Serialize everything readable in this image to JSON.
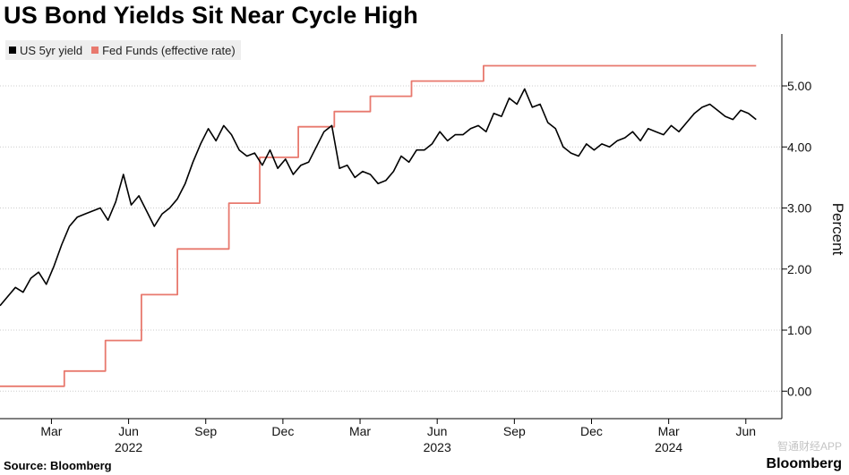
{
  "title": "US Bond Yields Sit Near Cycle High",
  "source": "Source: Bloomberg",
  "brand": "Bloomberg",
  "watermark": "智通财经APP",
  "colors": {
    "yield": "#000000",
    "fed": "#e8796e",
    "grid": "#cccccc"
  },
  "chart_data": {
    "type": "line",
    "title": "US Bond Yields Sit Near Cycle High",
    "xlabel": "",
    "ylabel": "Percent",
    "ylim": [
      -0.45,
      5.85
    ],
    "yticks": [
      0,
      1,
      2,
      3,
      4,
      5
    ],
    "ytick_labels": [
      "0.00",
      "1.00",
      "2.00",
      "3.00",
      "4.00",
      "5.00"
    ],
    "xlim": [
      0,
      30.4
    ],
    "xticks": [
      {
        "x": 2.0,
        "label": "Mar"
      },
      {
        "x": 5.0,
        "label": "Jun"
      },
      {
        "x": 8.0,
        "label": "Sep"
      },
      {
        "x": 11.0,
        "label": "Dec"
      },
      {
        "x": 14.0,
        "label": "Mar"
      },
      {
        "x": 17.0,
        "label": "Jun"
      },
      {
        "x": 20.0,
        "label": "Sep"
      },
      {
        "x": 23.0,
        "label": "Dec"
      },
      {
        "x": 26.0,
        "label": "Mar"
      },
      {
        "x": 29.0,
        "label": "Jun"
      }
    ],
    "year_labels": [
      {
        "x": 5.0,
        "label": "2022"
      },
      {
        "x": 17.0,
        "label": "2023"
      },
      {
        "x": 26.0,
        "label": "2024"
      }
    ],
    "x_unit": "months since 2022-01-01",
    "legend": "top-left",
    "grid": true,
    "series": [
      {
        "name": "US 5yr yield",
        "color": "#000000",
        "x": [
          0.0,
          0.3,
          0.6,
          0.9,
          1.2,
          1.5,
          1.8,
          2.1,
          2.4,
          2.7,
          3.0,
          3.3,
          3.6,
          3.9,
          4.2,
          4.5,
          4.8,
          5.1,
          5.4,
          5.7,
          6.0,
          6.3,
          6.6,
          6.9,
          7.2,
          7.5,
          7.8,
          8.1,
          8.4,
          8.7,
          9.0,
          9.3,
          9.6,
          9.9,
          10.2,
          10.5,
          10.8,
          11.1,
          11.4,
          11.7,
          12.0,
          12.3,
          12.6,
          12.9,
          13.2,
          13.5,
          13.8,
          14.1,
          14.4,
          14.7,
          15.0,
          15.3,
          15.6,
          15.9,
          16.2,
          16.5,
          16.8,
          17.1,
          17.4,
          17.7,
          18.0,
          18.3,
          18.6,
          18.9,
          19.2,
          19.5,
          19.8,
          20.1,
          20.4,
          20.7,
          21.0,
          21.3,
          21.6,
          21.9,
          22.2,
          22.5,
          22.8,
          23.1,
          23.4,
          23.7,
          24.0,
          24.3,
          24.6,
          24.9,
          25.2,
          25.5,
          25.8,
          26.1,
          26.4,
          26.7,
          27.0,
          27.3,
          27.6,
          27.9,
          28.2,
          28.5,
          28.8,
          29.1,
          29.4
        ],
        "values": [
          1.4,
          1.55,
          1.7,
          1.62,
          1.85,
          1.95,
          1.75,
          2.05,
          2.4,
          2.7,
          2.85,
          2.9,
          2.95,
          3.0,
          2.8,
          3.1,
          3.55,
          3.05,
          3.2,
          2.95,
          2.7,
          2.9,
          3.0,
          3.15,
          3.4,
          3.75,
          4.05,
          4.3,
          4.1,
          4.35,
          4.2,
          3.95,
          3.85,
          3.9,
          3.7,
          3.95,
          3.65,
          3.8,
          3.55,
          3.7,
          3.75,
          4.0,
          4.25,
          4.35,
          3.65,
          3.7,
          3.5,
          3.6,
          3.55,
          3.4,
          3.45,
          3.6,
          3.85,
          3.75,
          3.95,
          3.95,
          4.05,
          4.25,
          4.1,
          4.2,
          4.2,
          4.3,
          4.35,
          4.25,
          4.55,
          4.5,
          4.8,
          4.7,
          4.95,
          4.65,
          4.7,
          4.4,
          4.3,
          4.0,
          3.9,
          3.85,
          4.05,
          3.95,
          4.05,
          4.0,
          4.1,
          4.15,
          4.25,
          4.1,
          4.3,
          4.25,
          4.2,
          4.35,
          4.25,
          4.4,
          4.55,
          4.65,
          4.7,
          4.6,
          4.5,
          4.45,
          4.6,
          4.55,
          4.45
        ]
      },
      {
        "name": "Fed Funds (effective rate)",
        "color": "#e8796e",
        "x": [
          0.0,
          2.5,
          2.5,
          4.1,
          4.1,
          5.5,
          5.5,
          6.9,
          6.9,
          8.9,
          8.9,
          10.1,
          10.1,
          11.6,
          11.6,
          13.0,
          13.0,
          14.4,
          14.4,
          16.0,
          16.0,
          18.8,
          18.8,
          29.4
        ],
        "values": [
          0.08,
          0.08,
          0.33,
          0.33,
          0.83,
          0.83,
          1.58,
          1.58,
          2.33,
          2.33,
          3.08,
          3.08,
          3.83,
          3.83,
          4.33,
          4.33,
          4.58,
          4.58,
          4.83,
          4.83,
          5.08,
          5.08,
          5.33,
          5.33
        ]
      }
    ]
  },
  "legend_labels": [
    "US 5yr yield",
    "Fed Funds (effective rate)"
  ]
}
